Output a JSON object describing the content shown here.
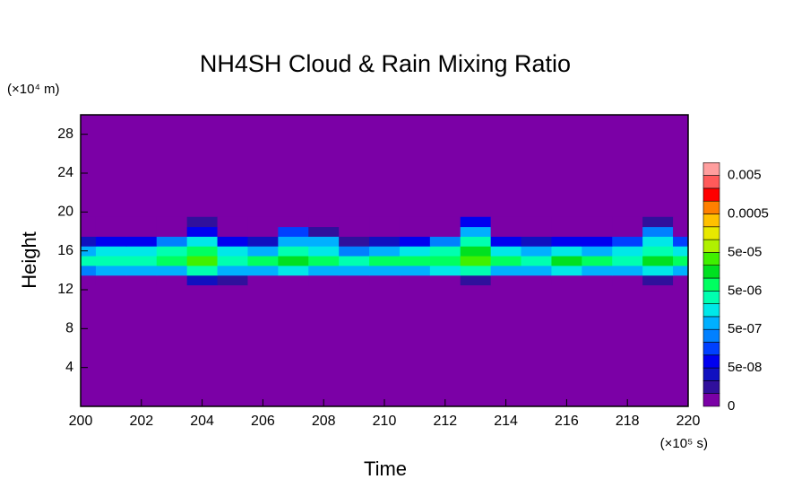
{
  "chart_data": {
    "type": "contour",
    "title": "NH4SH Cloud & Rain Mixing Ratio",
    "xlabel": "Time",
    "ylabel": "Height",
    "xunit": "(×10⁵ s)",
    "yunit": "(×10⁴ m)",
    "xlim": [
      200,
      220
    ],
    "ylim": [
      0,
      30
    ],
    "xticks": [
      200,
      202,
      204,
      206,
      208,
      210,
      212,
      214,
      216,
      218,
      220
    ],
    "yticks": [
      4,
      8,
      12,
      16,
      20,
      24,
      28
    ],
    "background": "#7b00a6",
    "x": [
      200,
      201,
      202,
      203,
      204,
      205,
      206,
      207,
      208,
      209,
      210,
      211,
      212,
      213,
      214,
      215,
      216,
      217,
      218,
      219,
      220
    ],
    "y": [
      13,
      14,
      15,
      16,
      17,
      18,
      19
    ],
    "z": [
      [
        0,
        0,
        0,
        0,
        2e-08,
        1e-08,
        0,
        0,
        0,
        0,
        0,
        0,
        0,
        1e-08,
        0,
        0,
        0,
        0,
        0,
        1e-08,
        0
      ],
      [
        2e-07,
        5e-07,
        5e-07,
        5e-07,
        2e-06,
        5e-07,
        5e-07,
        1e-06,
        5e-07,
        5e-07,
        5e-07,
        5e-07,
        1e-06,
        2e-06,
        5e-07,
        5e-07,
        1e-06,
        5e-07,
        5e-07,
        1e-06,
        5e-07
      ],
      [
        2e-06,
        3e-06,
        4e-06,
        5e-06,
        3e-05,
        4e-06,
        5e-06,
        1e-05,
        8e-06,
        2e-06,
        5e-06,
        6e-06,
        8e-06,
        3e-05,
        5e-06,
        2e-06,
        1e-05,
        5e-06,
        4e-06,
        1e-05,
        5e-06
      ],
      [
        5e-07,
        1e-06,
        1e-06,
        2e-06,
        5e-06,
        1e-06,
        5e-07,
        2e-06,
        1e-06,
        2e-07,
        5e-07,
        1e-06,
        2e-06,
        1e-05,
        1e-06,
        5e-07,
        1e-06,
        5e-07,
        1e-06,
        3e-06,
        1e-06
      ],
      [
        2e-08,
        5e-08,
        5e-08,
        2e-07,
        1e-06,
        5e-08,
        2e-08,
        5e-07,
        5e-07,
        1e-08,
        2e-08,
        5e-08,
        2e-07,
        2e-06,
        5e-08,
        2e-08,
        5e-08,
        5e-08,
        1e-07,
        1e-06,
        1e-07
      ],
      [
        0,
        0,
        0,
        0,
        5e-08,
        0,
        0,
        1e-07,
        1e-08,
        0,
        0,
        0,
        0,
        5e-07,
        0,
        0,
        0,
        0,
        0,
        2e-07,
        0
      ],
      [
        0,
        0,
        0,
        0,
        1e-08,
        0,
        0,
        0,
        0,
        0,
        0,
        0,
        0,
        5e-08,
        0,
        0,
        0,
        0,
        0,
        1e-08,
        0
      ]
    ],
    "levels": [
      0,
      1e-08,
      2e-08,
      5e-08,
      1e-07,
      2e-07,
      5e-07,
      1e-06,
      2e-06,
      5e-06,
      1e-05,
      2e-05,
      5e-05,
      0.0001,
      0.0002,
      0.0005,
      0.001,
      0.002,
      0.005
    ],
    "colors": [
      "#7b00a6",
      "#30109c",
      "#1010c0",
      "#0000f0",
      "#0040ff",
      "#0080ff",
      "#00b0ff",
      "#00e8e8",
      "#00ffb0",
      "#00ff60",
      "#00e020",
      "#40f000",
      "#b0f000",
      "#e8e800",
      "#ffc000",
      "#ff8000",
      "#ff0000",
      "#ff5a5a",
      "#ff9e9e"
    ],
    "colorbar_ticks": [
      0,
      {
        "value": 5e-08,
        "label": "5e-08"
      },
      {
        "value": 5e-07,
        "label": "5e-07"
      },
      {
        "value": 5e-06,
        "label": "5e-06"
      },
      {
        "value": 5e-05,
        "label": "5e-05"
      },
      0.0005,
      0.005
    ]
  }
}
